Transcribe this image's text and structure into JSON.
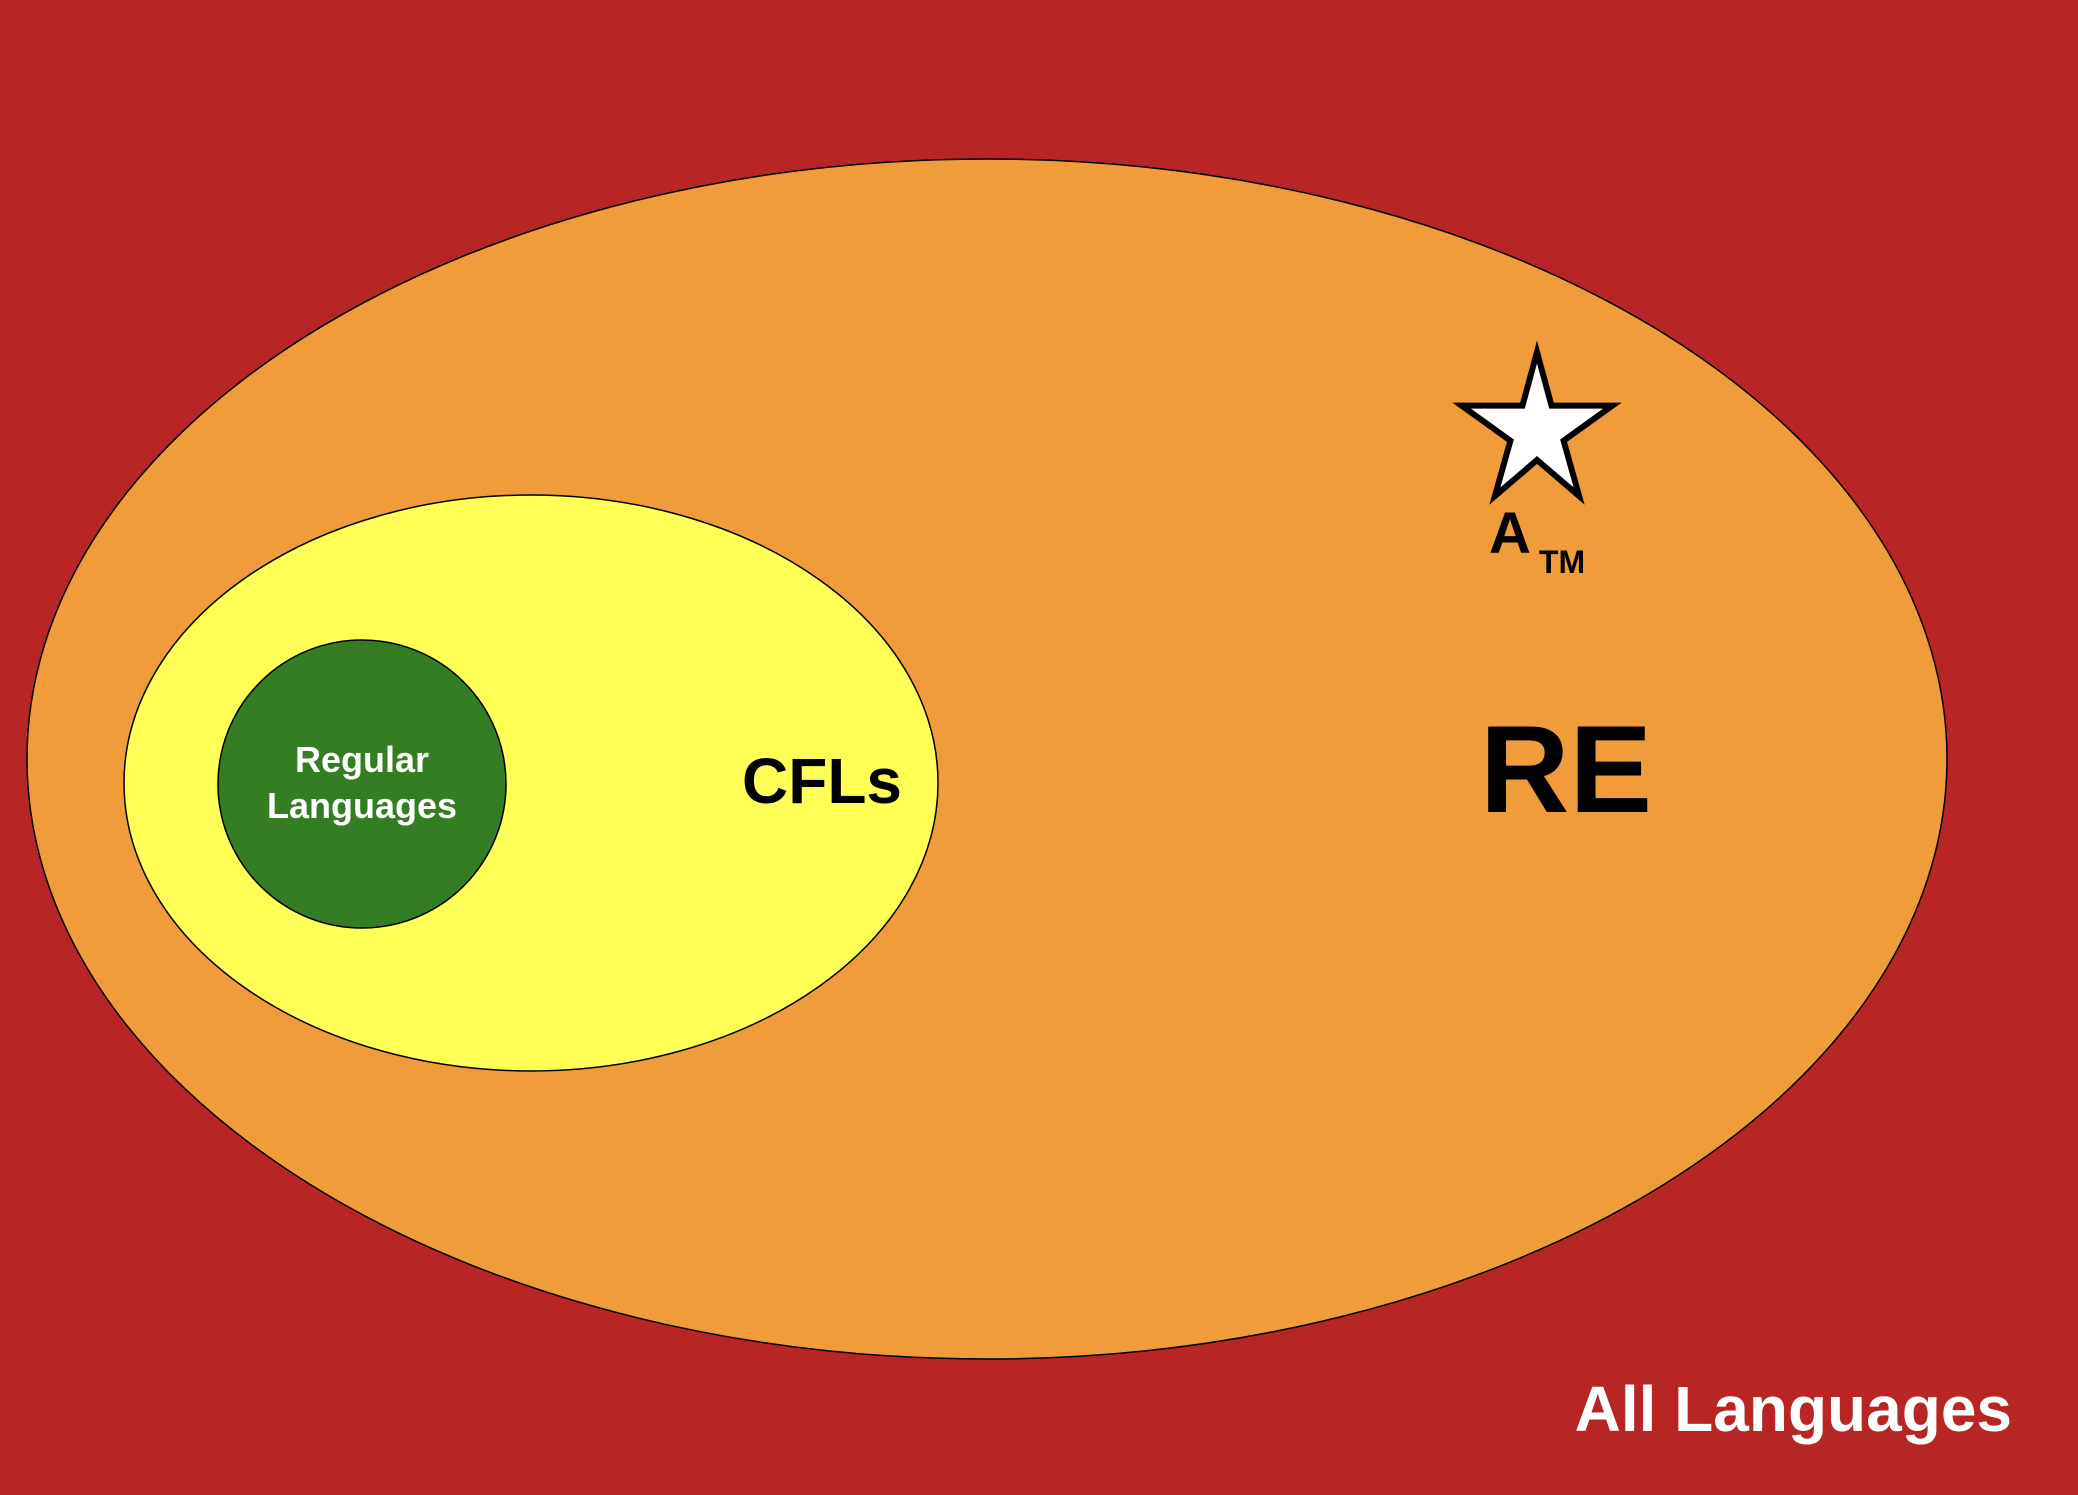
{
  "regions": {
    "all_languages": {
      "label": "All Languages",
      "color": "#b82525",
      "label_color": "#ffffff"
    },
    "re": {
      "label": "RE",
      "color": "#f09c3a",
      "label_color": "#000000"
    },
    "cfls": {
      "label": "CFLs",
      "color": "#ffff55",
      "label_color": "#000000"
    },
    "regular": {
      "label_line1": "Regular",
      "label_line2": "Languages",
      "color": "#357d22",
      "label_color": "#ffffff"
    }
  },
  "marker": {
    "icon": "star-icon",
    "fill": "#ffffff",
    "stroke": "#000000",
    "label_main": "A",
    "label_sub": "TM"
  }
}
